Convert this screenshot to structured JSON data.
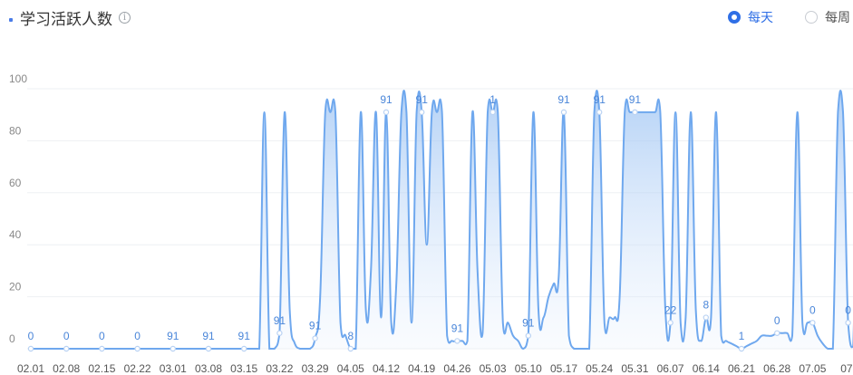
{
  "header": {
    "title": "学习活跃人数",
    "info_icon": "info-circle-icon",
    "options": [
      {
        "label": "每天",
        "selected": true
      },
      {
        "label": "每周",
        "selected": false
      }
    ]
  },
  "colors": {
    "line": "#6fa8ee",
    "area": "#cfe2fb",
    "accent": "#2f6fe6",
    "label": "#4a86d9"
  },
  "chart_data": {
    "type": "area",
    "title": "",
    "xlabel": "",
    "ylabel": "",
    "ylim": [
      0,
      100
    ],
    "yticks": [
      0,
      20,
      40,
      60,
      80,
      100
    ],
    "grid": true,
    "xtick_labels": [
      "02.01",
      "02.08",
      "02.15",
      "02.22",
      "03.01",
      "03.08",
      "03.15",
      "03.22",
      "03.29",
      "04.05",
      "04.12",
      "04.19",
      "04.26",
      "05.03",
      "05.10",
      "05.17",
      "05.24",
      "05.31",
      "06.07",
      "06.14",
      "06.21",
      "06.28",
      "07.05",
      "07."
    ],
    "series": [
      {
        "values": [
          0,
          0,
          0,
          0,
          0,
          0,
          0,
          0,
          0,
          0,
          0,
          0,
          0,
          0,
          0,
          0,
          0,
          0,
          0,
          0,
          0,
          0,
          0,
          0,
          0,
          0,
          0,
          0,
          0,
          0,
          0,
          0,
          0,
          0,
          0,
          0,
          0,
          0,
          0,
          0,
          0,
          0,
          0,
          0,
          0,
          0,
          91,
          0,
          0,
          6,
          91,
          15,
          2,
          0,
          0,
          0,
          4,
          20,
          91,
          91,
          91,
          10,
          5,
          0,
          0,
          91,
          15,
          30,
          91,
          12,
          91,
          10,
          25,
          91,
          91,
          10,
          91,
          91,
          40,
          91,
          91,
          91,
          5,
          3,
          3,
          3,
          3,
          91,
          30,
          6,
          91,
          91,
          91,
          10,
          10,
          5,
          3,
          0,
          5,
          91,
          15,
          12,
          20,
          25,
          28,
          91,
          5,
          0,
          0,
          0,
          0,
          91,
          91,
          10,
          12,
          12,
          20,
          91,
          91,
          91,
          91,
          91,
          91,
          91,
          91,
          15,
          10,
          91,
          10,
          12,
          91,
          15,
          3,
          12,
          12,
          91,
          5,
          3,
          2,
          1,
          0,
          1,
          2,
          3,
          5,
          5,
          5,
          6,
          6,
          6,
          5,
          91,
          10,
          10,
          10,
          5,
          2,
          0,
          0,
          91,
          91,
          10,
          1,
          91,
          5,
          0,
          0,
          10,
          0,
          0,
          91,
          5,
          6,
          0,
          0,
          91,
          3,
          5,
          91,
          5,
          0,
          91,
          91,
          91,
          5,
          10,
          20,
          30,
          91,
          91,
          91,
          91,
          50,
          22,
          15,
          15,
          10,
          5,
          3,
          6,
          0,
          1,
          2,
          8,
          8,
          91,
          10,
          5,
          0,
          0,
          0,
          8,
          10,
          2,
          2,
          1,
          1,
          5,
          15,
          25,
          27,
          8,
          2,
          0,
          5,
          6,
          0,
          0,
          0,
          0,
          0,
          0,
          0,
          0,
          0,
          0,
          0,
          0,
          0,
          0,
          0,
          0,
          0,
          0,
          0,
          0,
          0
        ]
      }
    ],
    "data_labels": [
      {
        "x": 0,
        "text": "0"
      },
      {
        "x": 7,
        "text": "0"
      },
      {
        "x": 14,
        "text": "0"
      },
      {
        "x": 21,
        "text": "0"
      },
      {
        "x": 28,
        "text": "91"
      },
      {
        "x": 35,
        "text": "91"
      },
      {
        "x": 42,
        "text": "91"
      },
      {
        "x": 49,
        "text": "91"
      },
      {
        "x": 56,
        "text": "91"
      },
      {
        "x": 63,
        "text": "8"
      },
      {
        "x": 70,
        "text": "91"
      },
      {
        "x": 77,
        "text": "91"
      },
      {
        "x": 84,
        "text": "91"
      },
      {
        "x": 91,
        "text": "1"
      },
      {
        "x": 98,
        "text": "91"
      },
      {
        "x": 105,
        "text": "91"
      },
      {
        "x": 112,
        "text": "91"
      },
      {
        "x": 119,
        "text": "91"
      },
      {
        "x": 126,
        "text": "22"
      },
      {
        "x": 133,
        "text": "8"
      },
      {
        "x": 140,
        "text": "1"
      },
      {
        "x": 147,
        "text": "0"
      },
      {
        "x": 154,
        "text": "0"
      },
      {
        "x": 161,
        "text": "0"
      }
    ]
  }
}
